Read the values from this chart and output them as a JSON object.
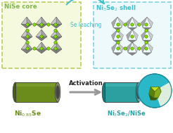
{
  "bg_color": "#ffffff",
  "title_color_green": "#7db648",
  "title_color_teal": "#3bbec8",
  "arrow_color_teal": "#3bbec8",
  "arrow_color_gray": "#999999",
  "text_se_leaching": "Se leaching",
  "text_activation": "Activation",
  "label_nise_core": "NiSe core",
  "label_ni3se2_shell": "Ni$_3$Se$_2$ shell",
  "label_ni085se": "Ni$_{0.85}$Se",
  "label_ni3se2_nise": "Ni$_3$Se$_2$/NiSe",
  "box_bg_green": "#f5fadf",
  "box_edge_green": "#b8ce5a",
  "box_bg_teal": "#eef9fb",
  "box_edge_teal": "#7dd4de",
  "crystal_face_light": "#c8c8c8",
  "crystal_face_mid": "#a0a0a0",
  "crystal_face_dark": "#787878",
  "node_fill": "#88dd00",
  "node_edge": "#3a7000",
  "cyl_olive_body": "#6b8c1a",
  "cyl_olive_end": "#4a6010",
  "cyl_olive_endcap_gray": "#888870",
  "cyl_teal_body": "#2aa0a0",
  "cyl_teal_end": "#1a7878",
  "cyl_teal_endcap_gray": "#509090",
  "sphere_outer": "#2ab8c8",
  "sphere_cut_bg": "#ddeedd",
  "inner_bright": "#c8e020",
  "inner_dark": "#5a8010",
  "inner_shadow": "#3a5808"
}
